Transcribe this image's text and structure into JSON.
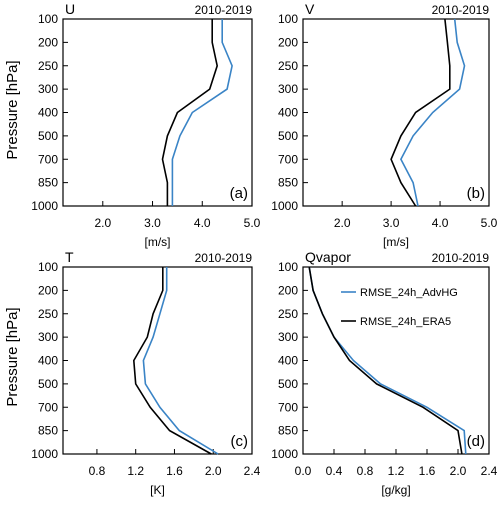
{
  "figure": {
    "ylabel": "Pressure [hPa]",
    "legend": {
      "entries": [
        "RMSE_24h_AdvHG",
        "RMSE_24h_ERA5"
      ],
      "placement": "upper-left of panel (d)"
    },
    "colors": {
      "AdvHG": "#3a84c6",
      "ERA5": "#000000"
    }
  },
  "chart_data": [
    {
      "type": "line",
      "title": "U",
      "period": "2010-2019",
      "panel_tag": "(a)",
      "xlabel": "[m/s]",
      "xlim": [
        1.2,
        5.0
      ],
      "xticks": [
        "2.0",
        "3.0",
        "4.0",
        "5.0"
      ],
      "y_categories": [
        "100",
        "200",
        "250",
        "300",
        "400",
        "500",
        "700",
        "850",
        "1000"
      ],
      "y_direction": "top-to-bottom",
      "series": [
        {
          "name": "RMSE_24h_AdvHG",
          "color": "#3a84c6",
          "values": [
            4.4,
            4.4,
            4.6,
            4.5,
            3.8,
            3.55,
            3.4,
            3.4,
            3.4
          ]
        },
        {
          "name": "RMSE_24h_ERA5",
          "color": "#000000",
          "values": [
            4.2,
            4.2,
            4.3,
            4.15,
            3.5,
            3.3,
            3.2,
            3.3,
            3.3
          ]
        }
      ]
    },
    {
      "type": "line",
      "title": "V",
      "period": "2010-2019",
      "panel_tag": "(b)",
      "xlabel": "[m/s]",
      "xlim": [
        1.2,
        5.0
      ],
      "xticks": [
        "2.0",
        "3.0",
        "4.0",
        "5.0"
      ],
      "y_categories": [
        "100",
        "200",
        "250",
        "300",
        "400",
        "500",
        "700",
        "850",
        "1000"
      ],
      "y_direction": "top-to-bottom",
      "series": [
        {
          "name": "RMSE_24h_AdvHG",
          "color": "#3a84c6",
          "values": [
            4.3,
            4.35,
            4.5,
            4.4,
            3.85,
            3.45,
            3.2,
            3.45,
            3.55
          ]
        },
        {
          "name": "RMSE_24h_ERA5",
          "color": "#000000",
          "values": [
            4.1,
            4.15,
            4.2,
            4.2,
            3.5,
            3.2,
            3.0,
            3.2,
            3.5
          ]
        }
      ]
    },
    {
      "type": "line",
      "title": "T",
      "period": "2010-2019",
      "panel_tag": "(c)",
      "xlabel": "[K]",
      "xlim": [
        0.45,
        2.4
      ],
      "xticks": [
        "0.8",
        "1.2",
        "1.6",
        "2.0",
        "2.4"
      ],
      "y_categories": [
        "100",
        "200",
        "250",
        "300",
        "400",
        "500",
        "700",
        "850",
        "1000"
      ],
      "y_direction": "top-to-bottom",
      "series": [
        {
          "name": "RMSE_24h_AdvHG",
          "color": "#3a84c6",
          "values": [
            1.52,
            1.52,
            1.45,
            1.38,
            1.28,
            1.3,
            1.45,
            1.65,
            2.05
          ]
        },
        {
          "name": "RMSE_24h_ERA5",
          "color": "#000000",
          "values": [
            1.48,
            1.48,
            1.38,
            1.32,
            1.18,
            1.2,
            1.35,
            1.55,
            1.98
          ]
        }
      ]
    },
    {
      "type": "line",
      "title": "Qvapor",
      "period": "2010-2019",
      "panel_tag": "(d)",
      "xlabel": "[g/kg]",
      "xlim": [
        0.0,
        2.4
      ],
      "xticks": [
        "0.0",
        "0.4",
        "0.8",
        "1.2",
        "1.6",
        "2.0",
        "2.4"
      ],
      "y_categories": [
        "100",
        "200",
        "250",
        "300",
        "400",
        "500",
        "700",
        "850",
        "1000"
      ],
      "y_direction": "top-to-bottom",
      "series": [
        {
          "name": "RMSE_24h_AdvHG",
          "color": "#3a84c6",
          "values": [
            0.08,
            0.13,
            0.25,
            0.4,
            0.65,
            1.0,
            1.6,
            2.08,
            2.1
          ]
        },
        {
          "name": "RMSE_24h_ERA5",
          "color": "#000000",
          "values": [
            0.08,
            0.13,
            0.25,
            0.4,
            0.6,
            0.95,
            1.55,
            2.0,
            2.05
          ]
        }
      ]
    }
  ]
}
